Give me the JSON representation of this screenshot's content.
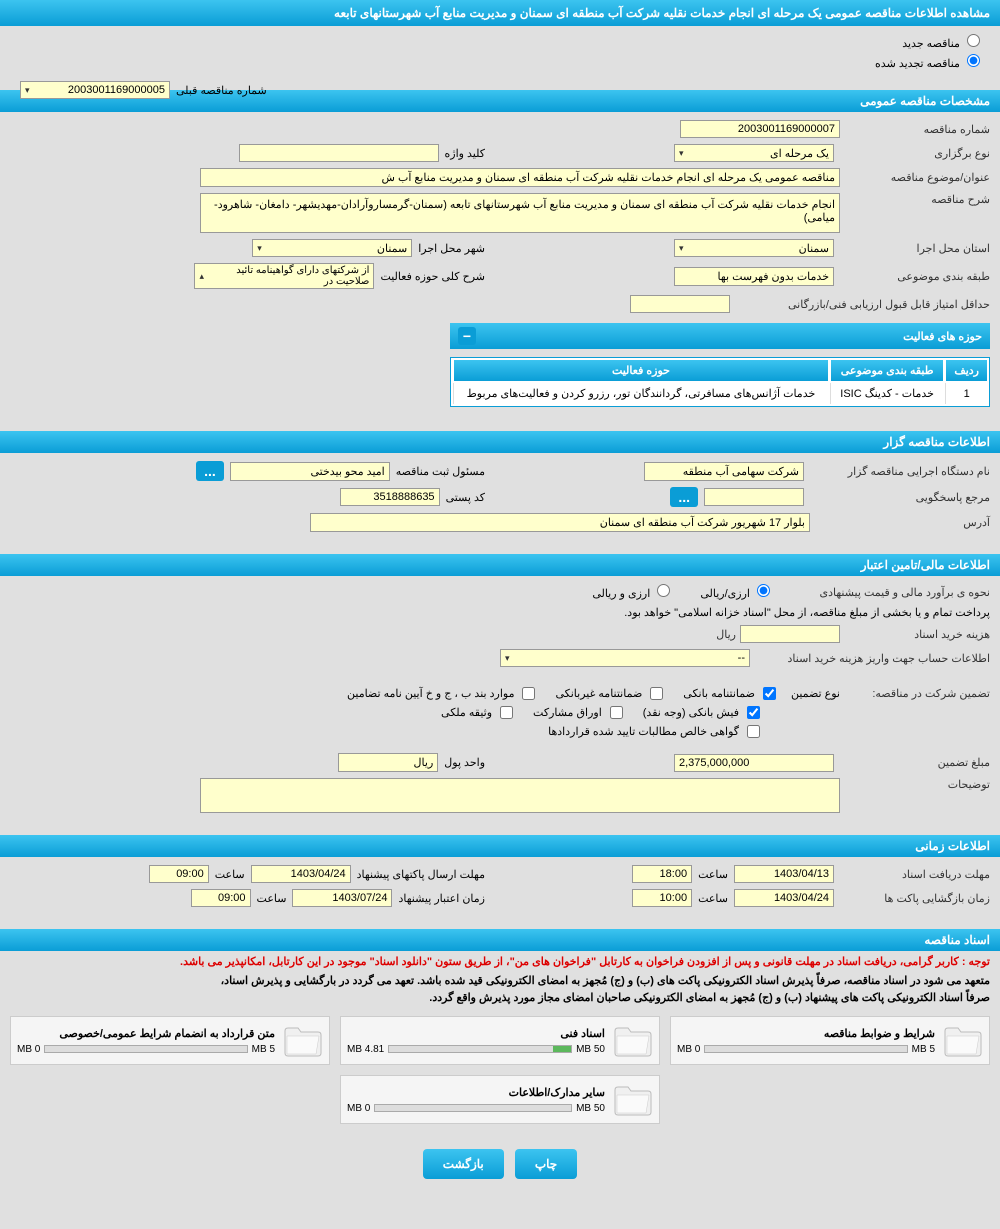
{
  "page_title": "مشاهده اطلاعات مناقصه عمومی یک مرحله ای انجام خدمات نقلیه شرکت آب منطقه ای سمنان و مدیریت منابع آب شهرستانهای تابعه",
  "radios": {
    "new_tender": "مناقصه جدید",
    "renewed_tender": "مناقصه تجدید شده"
  },
  "prev_number": {
    "label": "شماره مناقصه قبلی",
    "value": "2003001169000005"
  },
  "sections": {
    "general": "مشخصات مناقصه عمومی",
    "activities": "حوزه های فعالیت",
    "organizer": "اطلاعات مناقصه گزار",
    "financial": "اطلاعات مالی/تامین اعتبار",
    "timing": "اطلاعات زمانی",
    "documents": "اسناد مناقصه"
  },
  "general": {
    "tender_number_label": "شماره مناقصه",
    "tender_number": "2003001169000007",
    "holding_type_label": "نوع برگزاری",
    "holding_type": "یک مرحله ای",
    "keyword_label": "کلید واژه",
    "keyword": "",
    "subject_label": "عنوان/موضوع مناقصه",
    "subject": "مناقصه عمومی یک مرحله ای انجام خدمات نقلیه شرکت آب منطقه ای سمنان و مدیریت منابع آب ش",
    "description_label": "شرح مناقصه",
    "description": "انجام خدمات نقلیه شرکت آب منطقه ای سمنان و مدیریت منابع آب شهرستانهای تابعه (سمنان-گرمساروآرادان-مهدیشهر- دامغان- شاهرود- میامی)",
    "province_label": "استان محل اجرا",
    "province": "سمنان",
    "city_label": "شهر محل اجرا",
    "city": "سمنان",
    "classification_label": "طبقه بندی موضوعی",
    "classification": "خدمات بدون فهرست بها",
    "activity_scope_label": "شرح کلی حوزه فعالیت",
    "activity_scope": "از شرکتهای دارای گواهینامه تائید صلاحیت در",
    "min_score_label": "حداقل امتیاز قابل قبول ارزیابی فنی/بازرگانی",
    "min_score": ""
  },
  "activities_table": {
    "headers": {
      "row": "ردیف",
      "classification": "طبقه بندی موضوعی",
      "scope": "حوزه فعالیت"
    },
    "rows": [
      {
        "idx": "1",
        "classification": "خدمات - کدینگ ISIC",
        "scope": "خدمات آژانس‌های مسافرتی، گردانندگان تور، رزرو کردن و فعالیت‌های مربوط"
      }
    ]
  },
  "organizer": {
    "org_name_label": "نام دستگاه اجرایی مناقصه گزار",
    "org_name": "شرکت سهامی آب منطقه",
    "registrar_label": "مسئول ثبت مناقصه",
    "registrar": "امید محو بیدختی",
    "respondent_label": "مرجع پاسخگویی",
    "respondent": "",
    "postal_label": "کد پستی",
    "postal": "3518888635",
    "address_label": "آدرس",
    "address": "بلوار 17 شهریور شرکت آب منطقه ای سمنان"
  },
  "financial": {
    "estimate_label": "نحوه ی برآورد مالی و قیمت پیشنهادی",
    "currency_opt1": "ارزی/ریالی",
    "currency_opt2": "ارزی و ریالی",
    "payment_note": "پرداخت تمام و یا بخشی از مبلغ مناقصه، از محل \"اسناد خزانه اسلامی\" خواهد بود.",
    "doc_cost_label": "هزینه خرید اسناد",
    "doc_cost_unit": "ریال",
    "account_info_label": "اطلاعات حساب جهت واریز هزینه خرید اسناد",
    "account_info": "--",
    "guarantee_label": "تضمین شرکت در مناقصه:",
    "guarantee_type_label": "نوع تضمین",
    "checks": {
      "bank_guarantee": "ضمانتنامه بانکی",
      "nonbank_guarantee": "ضمانتنامه غیربانکی",
      "items_bjv": "موارد بند ب ، ج و خ آیین نامه تضامین",
      "bank_receipt": "فیش بانکی (وجه نقد)",
      "securities": "اوراق مشارکت",
      "property_bond": "وثیقه ملکی",
      "net_claims": "گواهی خالص مطالبات تایید شده قراردادها"
    },
    "guarantee_amount_label": "مبلغ تضمین",
    "guarantee_amount": "2,375,000,000",
    "currency_unit_label": "واحد پول",
    "currency_unit": "ریال",
    "notes_label": "توضیحات"
  },
  "timing": {
    "doc_deadline_label": "مهلت دریافت اسناد",
    "doc_deadline_date": "1403/04/13",
    "doc_deadline_time_label": "ساعت",
    "doc_deadline_time": "18:00",
    "proposal_deadline_label": "مهلت ارسال پاکتهای پیشنهاد",
    "proposal_deadline_date": "1403/04/24",
    "proposal_deadline_time_label": "ساعت",
    "proposal_deadline_time": "09:00",
    "opening_label": "زمان بازگشایی پاکت ها",
    "opening_date": "1403/04/24",
    "opening_time_label": "ساعت",
    "opening_time": "10:00",
    "validity_label": "زمان اعتبار پیشنهاد",
    "validity_date": "1403/07/24",
    "validity_time_label": "ساعت",
    "validity_time": "09:00"
  },
  "docs": {
    "notice_red": "توجه : کاربر گرامی، دریافت اسناد در مهلت قانونی و پس از افزودن فراخوان به کارتابل \"فراخوان های من\"، از طریق ستون \"دانلود اسناد\" موجود در این کارتابل، امکانپذیر می باشد.",
    "notice1": "متعهد می شود در اسناد مناقصه، صرفاً پذیرش اسناد الکترونیکی پاکت های (ب) و (ج) مُجهز به امضای الکترونیکی قید شده باشد. تعهد می گردد در بارگشایی و پذیرش اسناد،",
    "notice2": "صرفاً اسناد الکترونیکی پاکت های پیشنهاد (ب) و (ج) مُجهز به امضای الکترونیکی صاحبان امضای مجاز مورد پذیرش واقع گردد.",
    "cards": [
      {
        "title": "شرایط و ضوابط مناقصه",
        "used": "0 MB",
        "total": "5 MB",
        "pct": 0
      },
      {
        "title": "اسناد فنی",
        "used": "4.81 MB",
        "total": "50 MB",
        "pct": 10
      },
      {
        "title": "متن قرارداد به انضمام شرایط عمومی/خصوصی",
        "used": "0 MB",
        "total": "5 MB",
        "pct": 0
      },
      {
        "title": "سایر مدارک/اطلاعات",
        "used": "0 MB",
        "total": "50 MB",
        "pct": 0
      }
    ]
  },
  "buttons": {
    "print": "چاپ",
    "back": "بازگشت"
  },
  "colors": {
    "header_grad_top": "#3cc4f0",
    "header_grad_bottom": "#0a9dd6",
    "field_bg": "#ffffcc",
    "page_bg": "#e0e0e0"
  }
}
